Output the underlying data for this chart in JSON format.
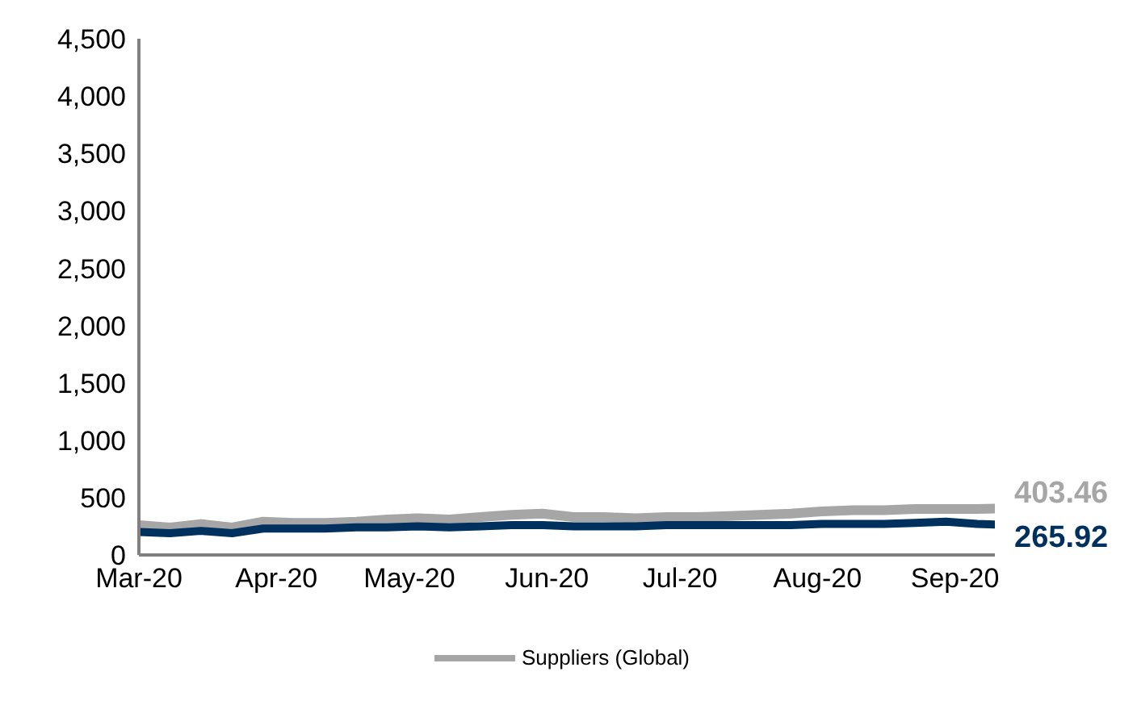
{
  "chart_data": {
    "type": "line",
    "x": [
      "2020-03-01",
      "2020-03-08",
      "2020-03-15",
      "2020-03-22",
      "2020-03-29",
      "2020-04-05",
      "2020-04-12",
      "2020-04-19",
      "2020-04-26",
      "2020-05-03",
      "2020-05-10",
      "2020-05-17",
      "2020-05-24",
      "2020-05-31",
      "2020-06-07",
      "2020-06-14",
      "2020-06-21",
      "2020-06-28",
      "2020-07-05",
      "2020-07-12",
      "2020-07-19",
      "2020-07-26",
      "2020-08-02",
      "2020-08-09",
      "2020-08-16",
      "2020-08-23",
      "2020-08-30",
      "2020-09-06",
      "2020-09-10"
    ],
    "series": [
      {
        "color": "#a6a6a6",
        "values": [
          260,
          240,
          270,
          240,
          290,
          280,
          280,
          290,
          310,
          320,
          310,
          330,
          350,
          360,
          330,
          330,
          320,
          330,
          330,
          340,
          350,
          360,
          380,
          390,
          390,
          400,
          400,
          400,
          403.46
        ],
        "value_labels": [
          null,
          null,
          null,
          null,
          null,
          null,
          null,
          null,
          null,
          null,
          null,
          null,
          null,
          null,
          null,
          null,
          null,
          null,
          null,
          null,
          null,
          null,
          null,
          null,
          null,
          null,
          null,
          null,
          "403.46"
        ]
      },
      {
        "color": "#00305e",
        "values": [
          200,
          190,
          210,
          190,
          230,
          230,
          230,
          240,
          240,
          250,
          240,
          250,
          260,
          260,
          250,
          250,
          250,
          260,
          260,
          260,
          260,
          260,
          270,
          270,
          270,
          280,
          290,
          270,
          265.92
        ],
        "value_labels": [
          null,
          null,
          null,
          null,
          null,
          null,
          null,
          null,
          null,
          null,
          null,
          null,
          null,
          null,
          null,
          null,
          null,
          null,
          null,
          null,
          null,
          null,
          null,
          null,
          null,
          null,
          null,
          null,
          "265.92"
        ]
      },
      {
        "name": "Suppliers (Global)",
        "color": "#a6a6a6",
        "values": [
          null,
          null,
          null,
          null,
          null,
          null,
          null,
          null,
          null,
          null,
          null,
          null,
          null,
          null,
          null,
          null,
          null,
          null,
          null,
          null,
          null,
          null,
          null,
          null,
          null,
          null,
          null,
          null,
          null
        ]
      }
    ],
    "xlim": [
      "2020-03-01",
      "2020-09-10"
    ],
    "xticks": [
      {
        "value": "2020-03-01",
        "label": "Mar-20"
      },
      {
        "value": "2020-04-01",
        "label": "Apr-20"
      },
      {
        "value": "2020-05-01",
        "label": "May-20"
      },
      {
        "value": "2020-06-01",
        "label": "Jun-20"
      },
      {
        "value": "2020-07-01",
        "label": "Jul-20"
      },
      {
        "value": "2020-08-01",
        "label": "Aug-20"
      },
      {
        "value": "2020-09-01",
        "label": "Sep-20"
      }
    ],
    "ylim": [
      0,
      4500
    ],
    "yticks": [
      0,
      500,
      {
        "value": 1000,
        "label": "1,000"
      },
      {
        "value": 1500,
        "label": "1,500"
      },
      {
        "value": 2000,
        "label": "2,000"
      },
      {
        "value": 2500,
        "label": "2,500"
      },
      {
        "value": 3000,
        "label": "3,000"
      },
      {
        "value": 3500,
        "label": "3,500"
      },
      {
        "value": 4000,
        "label": "4,000"
      },
      {
        "value": 4500,
        "label": "4,500"
      }
    ],
    "grid": false,
    "legend": "bottom",
    "marker": "none",
    "line_style": "solid"
  }
}
